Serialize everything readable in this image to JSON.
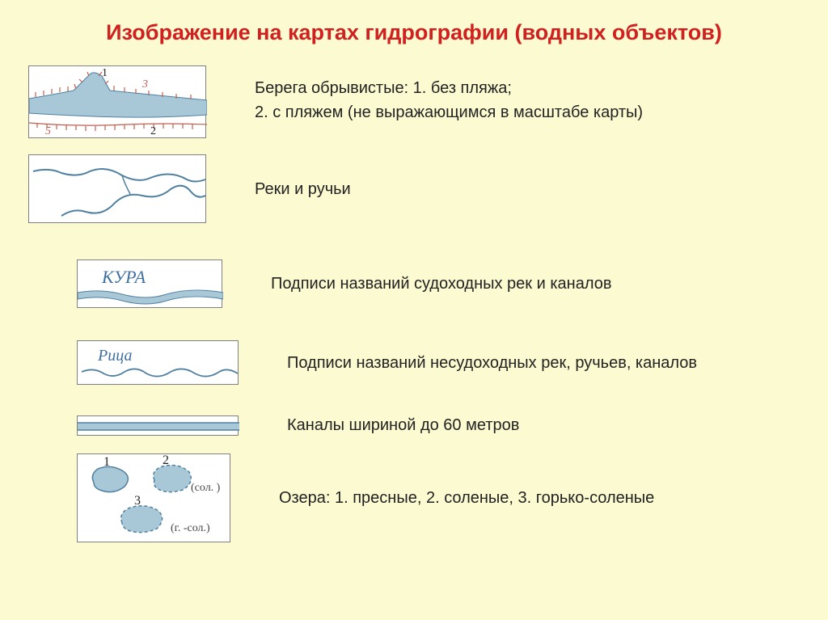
{
  "title": "Изображение на картах гидрографии (водных объектов)",
  "items": [
    {
      "desc_html": "Берега обрывистые: 1. без пляжа;<br>2. с пляжем (не выражающимся в масштабе карты)"
    },
    {
      "desc": "Реки и ручьи"
    },
    {
      "desc": "Подписи названий судоходных рек и каналов",
      "label": "КУРА"
    },
    {
      "desc": "Подписи названий несудоходных рек, ручьев, каналов",
      "label": "Рица"
    },
    {
      "desc": "Каналы шириной до 60 метров"
    },
    {
      "desc": "Озера: 1. пресные, 2. соленые, 3. горько-соленые",
      "labels": {
        "n1": "1",
        "n2": "2",
        "n3": "3",
        "sol": "(сол. )",
        "gsol": "(г. -сол.)"
      }
    }
  ],
  "colors": {
    "water_fill": "#a8c8d8",
    "water_stroke": "#5080a0",
    "background": "#fcfad0",
    "title": "#d02020",
    "coast_red": "#c06050",
    "text_blue": "#4070a0",
    "black": "#222222"
  }
}
